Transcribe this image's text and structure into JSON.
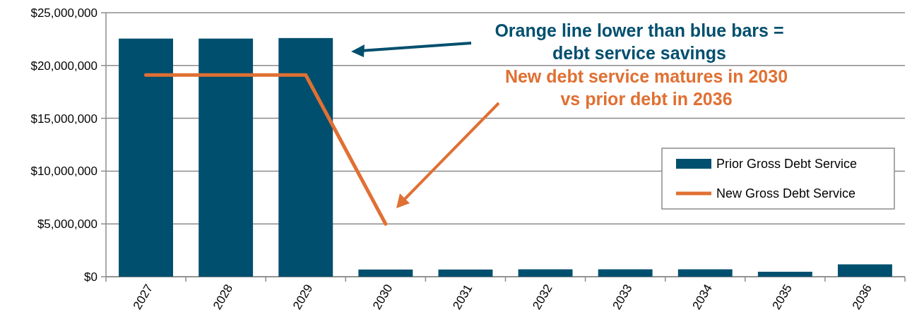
{
  "chart_data": {
    "type": "bar",
    "categories": [
      "2027",
      "2028",
      "2029",
      "2030",
      "2031",
      "2032",
      "2033",
      "2034",
      "2035",
      "2036"
    ],
    "series": [
      {
        "name": "Prior Gross Debt Service",
        "color": "#014f6e",
        "values": [
          22550000,
          22550000,
          22600000,
          680000,
          680000,
          700000,
          700000,
          700000,
          470000,
          1170000
        ]
      },
      {
        "name": "New Gross Debt Service",
        "type": "line",
        "color": "#e07033",
        "values": [
          19100000,
          19100000,
          19100000,
          5000000,
          null,
          null,
          null,
          null,
          null,
          null
        ]
      }
    ],
    "ylim": [
      0,
      25000000
    ],
    "yticks": [
      {
        "value": 0,
        "label": "$0"
      },
      {
        "value": 5000000,
        "label": "$5,000,000"
      },
      {
        "value": 10000000,
        "label": "$10,000,000"
      },
      {
        "value": 15000000,
        "label": "$15,000,000"
      },
      {
        "value": 20000000,
        "label": "$20,000,000"
      },
      {
        "value": 25000000,
        "label": "$25,000,000"
      }
    ],
    "grid": "y",
    "legend": "right",
    "annotations": [
      "Orange line lower than blue bars =\ndebt service savings",
      "New debt service matures in 2030\nvs prior debt in 2036"
    ]
  }
}
